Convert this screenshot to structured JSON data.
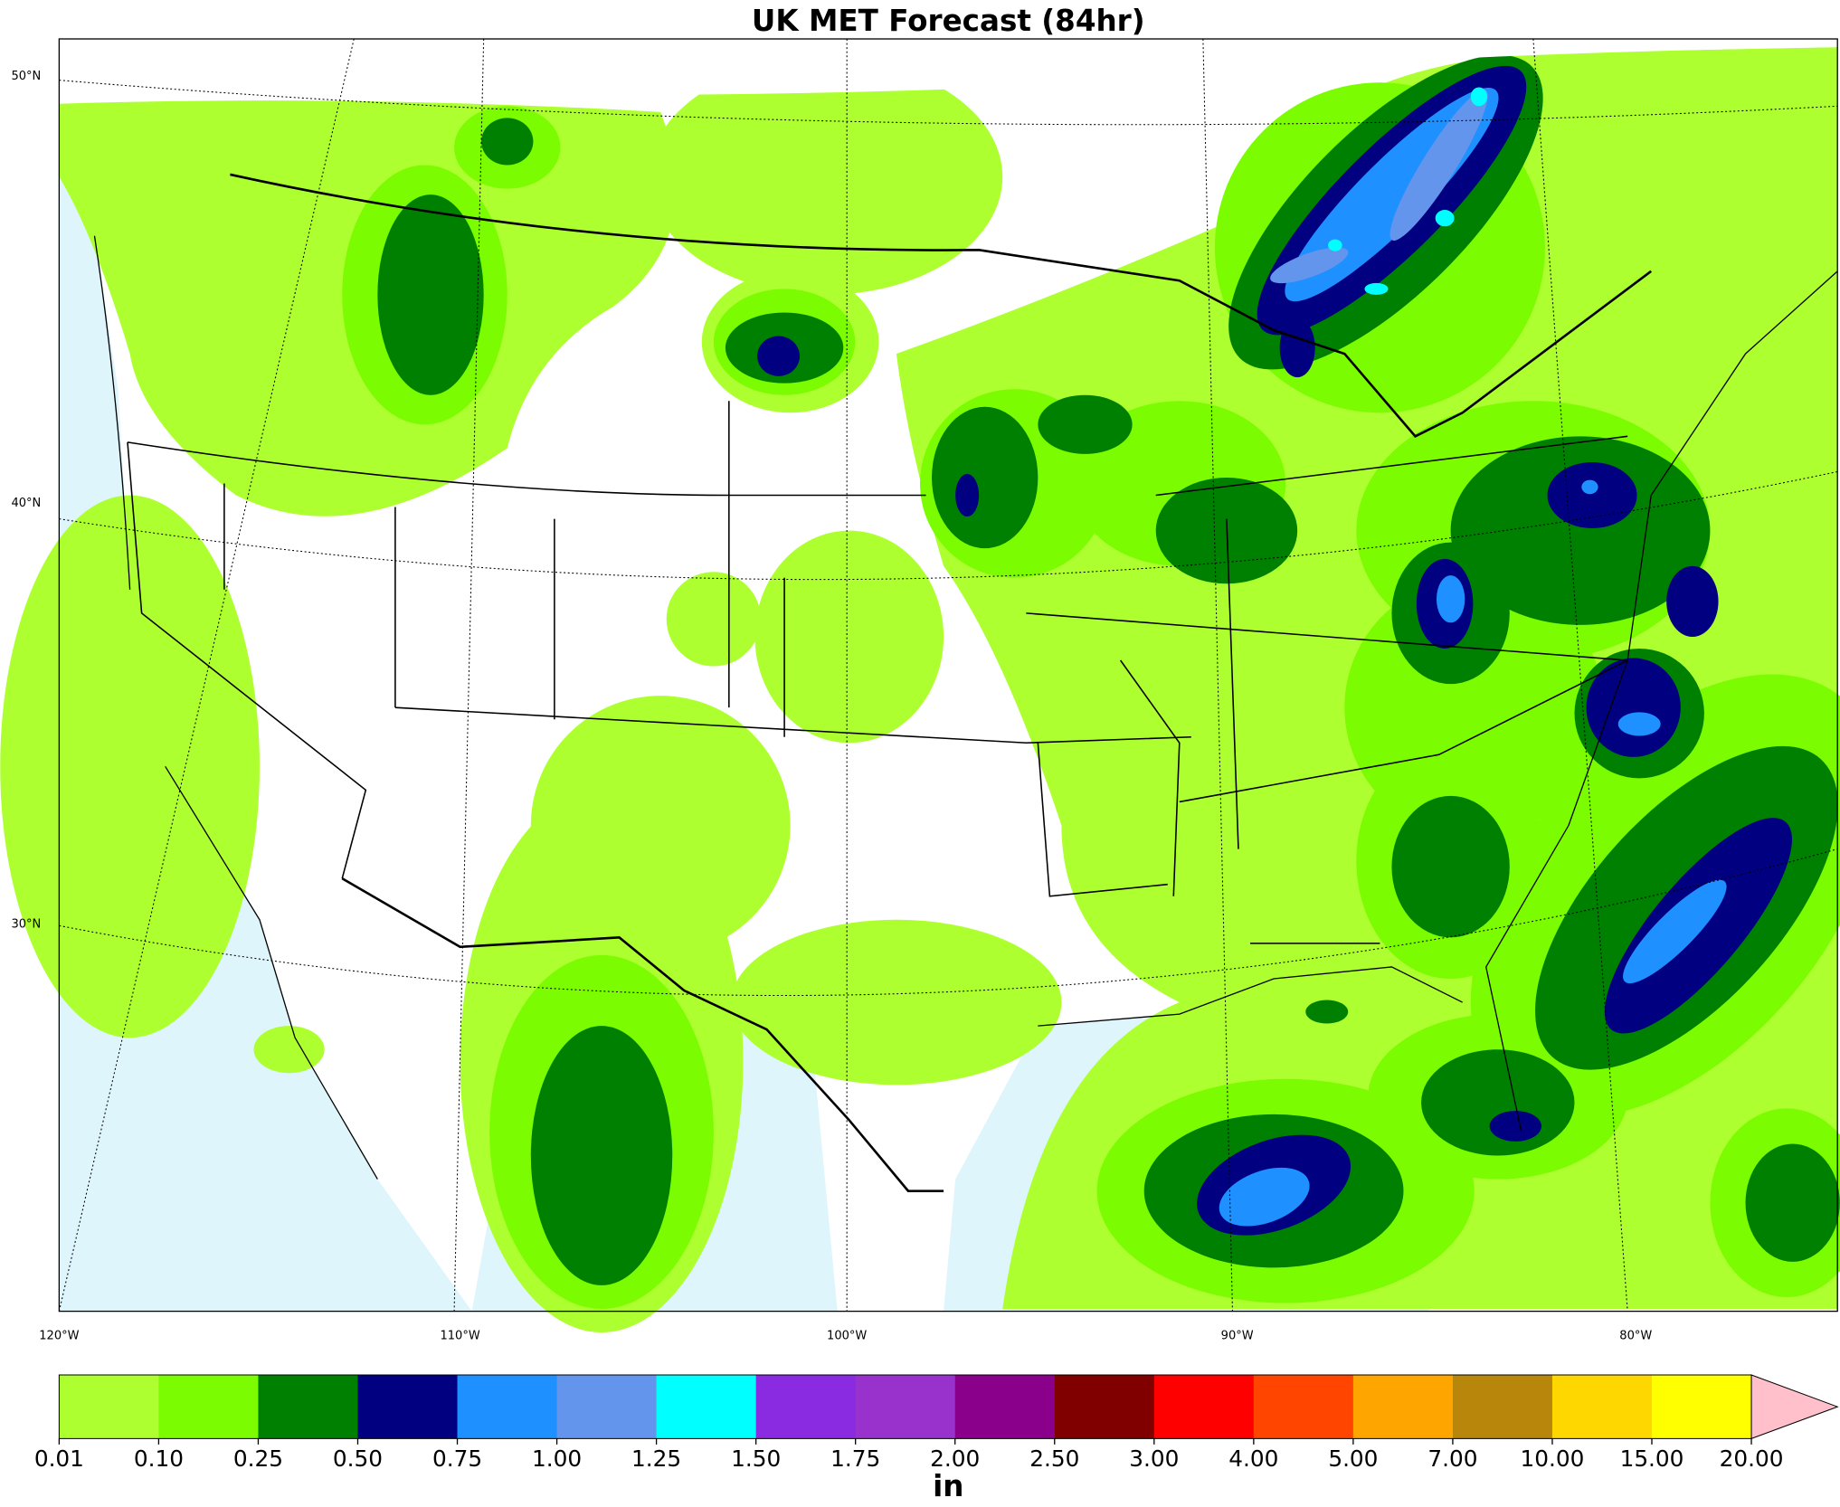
{
  "title": "UK MET Forecast (84hr)",
  "lat_labels": [
    "50°N",
    "40°N",
    "30°N"
  ],
  "lon_labels": [
    "120°W",
    "110°W",
    "100°W",
    "90°W",
    "80°W"
  ],
  "colorbar": {
    "ticks": [
      0.01,
      {
        "value": 0.1,
        "label": "0.10"
      },
      0.25,
      {
        "value": 0.5,
        "label": "0.50"
      },
      0.75,
      {
        "value": 1,
        "label": "1.00"
      },
      1.25,
      {
        "value": 1.5,
        "label": "1.50"
      },
      1.75,
      {
        "value": 2,
        "label": "2.00"
      },
      {
        "value": 2.5,
        "label": "2.50"
      },
      {
        "value": 3,
        "label": "3.00"
      },
      {
        "value": 4,
        "label": "4.00"
      },
      {
        "value": 5,
        "label": "5.00"
      },
      {
        "value": 7,
        "label": "7.00"
      },
      {
        "value": 10,
        "label": "10.00"
      },
      {
        "value": 15,
        "label": "15.00"
      },
      {
        "value": 20,
        "label": "20.00"
      }
    ],
    "colors": [
      "#adff2f",
      "#7cfc00",
      "#008000",
      "#000080",
      "#1e90ff",
      "#6495ed",
      "#00ffff",
      "#8a2be2",
      "#9932cc",
      "#8b008b",
      "#800000",
      "#ff0000",
      "#ff4500",
      "#ffa500",
      "#b8860b",
      "#ffd700",
      "#ffff00"
    ],
    "extend_color": "#ffc0cb",
    "unit": "in"
  }
}
